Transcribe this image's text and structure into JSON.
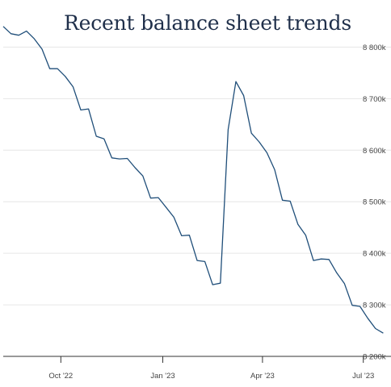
{
  "chart_data": {
    "type": "line",
    "title": "Recent balance sheet trends",
    "xlabel": "",
    "ylabel": "",
    "x_tick_labels": [
      "Oct '22",
      "Jan '23",
      "Apr '23",
      "Jul '23"
    ],
    "x_tick_dates": [
      "2022-10-01",
      "2023-01-01",
      "2023-04-01",
      "2023-07-01"
    ],
    "y_tick_labels": [
      "8 200k",
      "8 300k",
      "8 400k",
      "8 500k",
      "8 600k",
      "8 700k",
      "8 800k"
    ],
    "y_tick_values": [
      8200000,
      8300000,
      8400000,
      8500000,
      8600000,
      8700000,
      8800000
    ],
    "xlim": [
      "2022-08-10",
      "2023-07-26"
    ],
    "ylim": [
      8200000,
      8835000
    ],
    "y_axis_position": "right",
    "grid": "horizontal",
    "series": [
      {
        "color": "#1f4e79",
        "x": [
          "2022-08-10",
          "2022-08-17",
          "2022-08-24",
          "2022-08-31",
          "2022-09-07",
          "2022-09-14",
          "2022-09-21",
          "2022-09-28",
          "2022-10-05",
          "2022-10-12",
          "2022-10-19",
          "2022-10-26",
          "2022-11-02",
          "2022-11-09",
          "2022-11-16",
          "2022-11-23",
          "2022-11-30",
          "2022-12-07",
          "2022-12-14",
          "2022-12-21",
          "2022-12-28",
          "2023-01-04",
          "2023-01-11",
          "2023-01-18",
          "2023-01-25",
          "2023-02-01",
          "2023-02-08",
          "2023-02-15",
          "2023-02-22",
          "2023-03-01",
          "2023-03-08",
          "2023-03-15",
          "2023-03-22",
          "2023-03-29",
          "2023-04-05",
          "2023-04-12",
          "2023-04-19",
          "2023-04-26",
          "2023-05-03",
          "2023-05-10",
          "2023-05-17",
          "2023-05-24",
          "2023-05-31",
          "2023-06-07",
          "2023-06-14",
          "2023-06-21",
          "2023-06-28",
          "2023-07-05",
          "2023-07-12",
          "2023-07-19"
        ],
        "values": [
          8840000,
          8826000,
          8823000,
          8831000,
          8816000,
          8796000,
          8758000,
          8758000,
          8743000,
          8723000,
          8678000,
          8680000,
          8627000,
          8622000,
          8585000,
          8583000,
          8584000,
          8566000,
          8550000,
          8507000,
          8508000,
          8489000,
          8470000,
          8434000,
          8435000,
          8386000,
          8384000,
          8339000,
          8342000,
          8640000,
          8733000,
          8706000,
          8633000,
          8616000,
          8595000,
          8562000,
          8503000,
          8501000,
          8456000,
          8435000,
          8386000,
          8389000,
          8388000,
          8362000,
          8341000,
          8299000,
          8297000,
          8274000,
          8254000,
          8245000
        ]
      }
    ]
  }
}
